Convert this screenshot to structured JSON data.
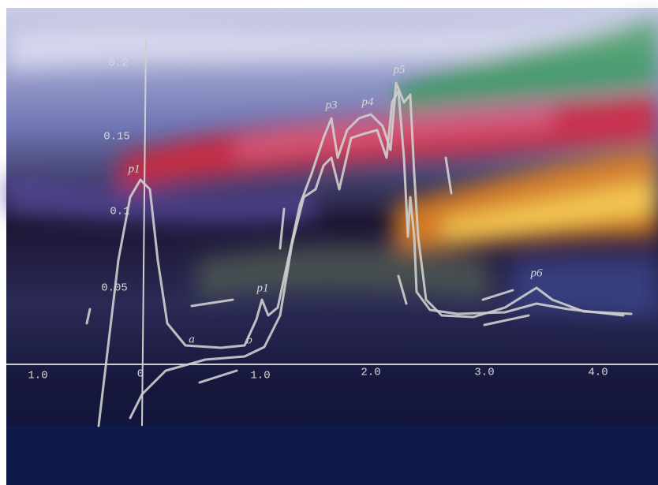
{
  "axis": {
    "y_labels": [
      "0.2",
      "0.15",
      "0.1",
      "0.05"
    ],
    "x_labels": [
      "1.0",
      "0",
      "1.0",
      "2.0",
      "3.0",
      "4.0"
    ]
  },
  "annotations": {
    "peaks": [
      "p1",
      "p1",
      "p3",
      "p4",
      "p5",
      "p6"
    ],
    "curves": [
      "a",
      "b"
    ]
  }
}
